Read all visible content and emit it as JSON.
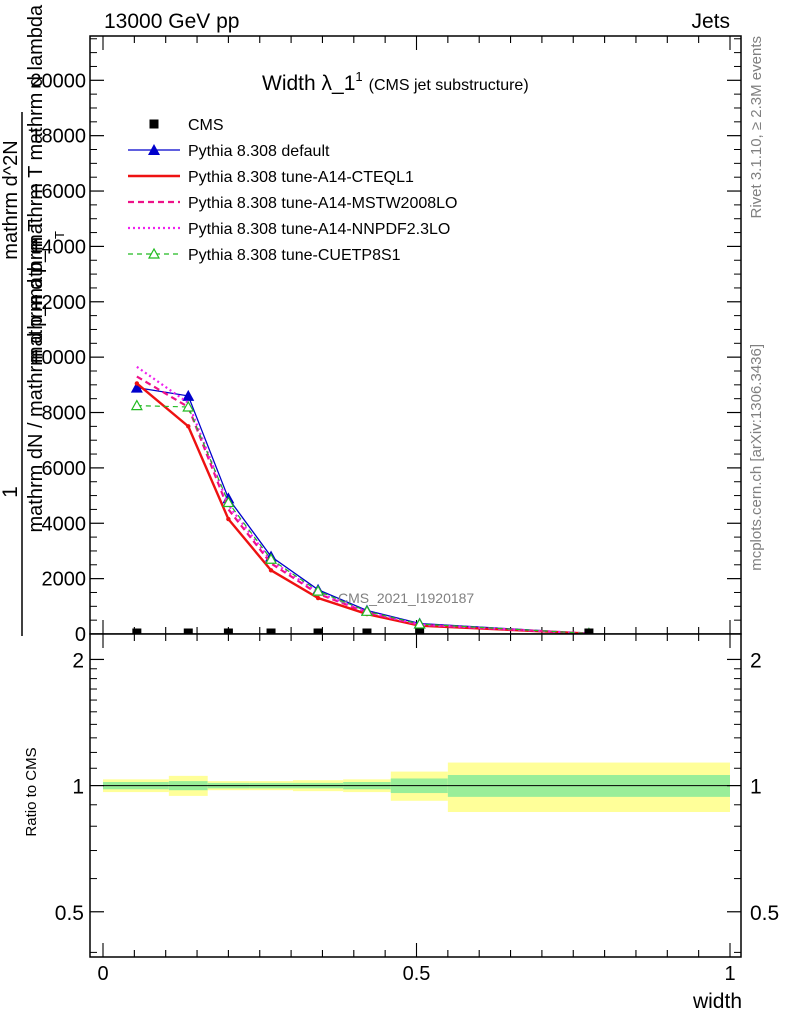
{
  "header": {
    "left": "13000 GeV pp",
    "right": "Jets"
  },
  "side_text": {
    "rivet": "Rivet 3.1.10, ≥ 2.3M events",
    "mcplots": "mcplots.cern.ch [arXiv:1306.3436]"
  },
  "chart_data": [
    {
      "panel": "main",
      "type": "line",
      "title_main": "Width λ_1",
      "title_sup": "1",
      "title_sub": "(CMS jet substructure)",
      "ylabel_left_numer": "1",
      "ylabel_left_denom": "mathrm dN / mathrm d p_mathrm T",
      "ylabel_right_numer": "mathrm d^2N",
      "ylabel_right_denom": "mathrm d p_mathrm T mathrm d lambda",
      "xlim": [
        -0.02,
        1.0
      ],
      "ylim": [
        0,
        21600
      ],
      "y_ticks": [
        0,
        2000,
        4000,
        6000,
        8000,
        10000,
        12000,
        14000,
        16000,
        18000,
        20000
      ],
      "y_tick_labels": [
        "0",
        "2000",
        "4000",
        "6000",
        "8000",
        "10000",
        "12000",
        "14000",
        "16000",
        "18000",
        "20000"
      ],
      "watermark": "CMS_2021_I1920187",
      "legend_position": "top-left",
      "x": [
        0.054,
        0.136,
        0.2,
        0.268,
        0.343,
        0.421,
        0.505,
        0.775
      ],
      "series": [
        {
          "name": "CMS",
          "style": "markers",
          "color": "#000000",
          "values": [
            0,
            0,
            0,
            0,
            0,
            0,
            0,
            0
          ]
        },
        {
          "name": "Pythia 8.308 default",
          "style": "solid-triangle",
          "color": "#0000cc",
          "values": [
            8900,
            8600,
            4900,
            2800,
            1600,
            850,
            380,
            20
          ]
        },
        {
          "name": "Pythia 8.308 tune-A14-CTEQL1",
          "style": "solid-thick",
          "color": "#ee1111",
          "values": [
            9050,
            7500,
            4150,
            2300,
            1300,
            720,
            300,
            15
          ]
        },
        {
          "name": "Pythia 8.308 tune-A14-MSTW2008LO",
          "style": "dashed",
          "color": "#ee1188",
          "values": [
            9300,
            8200,
            4500,
            2550,
            1450,
            780,
            330,
            18
          ]
        },
        {
          "name": "Pythia 8.308 tune-A14-NNPDF2.3LO",
          "style": "dotted",
          "color": "#ee22ee",
          "values": [
            9650,
            8350,
            4650,
            2650,
            1500,
            800,
            340,
            18
          ]
        },
        {
          "name": "Pythia 8.308 tune-CUETP8S1",
          "style": "dashed-open-triangle",
          "color": "#22bb22",
          "values": [
            8250,
            8200,
            4750,
            2700,
            1550,
            820,
            360,
            20
          ]
        }
      ]
    },
    {
      "panel": "ratio",
      "type": "area",
      "ylabel": "Ratio to CMS",
      "xlabel": "width",
      "xlim": [
        -0.02,
        1.0
      ],
      "x_ticks": [
        0,
        0.5,
        1
      ],
      "x_tick_labels": [
        "0",
        "0.5",
        "1"
      ],
      "y_scale": "log",
      "ylim": [
        0.39,
        2.3
      ],
      "y_ticks": [
        0.5,
        1,
        2
      ],
      "y_tick_labels": [
        "0.5",
        "1",
        "2"
      ],
      "bins": [
        {
          "lo": 0.0,
          "hi": 0.105,
          "stat": [
            0.98,
            1.02
          ],
          "total": [
            0.965,
            1.035
          ]
        },
        {
          "lo": 0.105,
          "hi": 0.167,
          "stat": [
            0.975,
            1.025
          ],
          "total": [
            0.945,
            1.055
          ]
        },
        {
          "lo": 0.167,
          "hi": 0.233,
          "stat": [
            0.985,
            1.015
          ],
          "total": [
            0.975,
            1.025
          ]
        },
        {
          "lo": 0.233,
          "hi": 0.303,
          "stat": [
            0.985,
            1.015
          ],
          "total": [
            0.975,
            1.025
          ]
        },
        {
          "lo": 0.303,
          "hi": 0.383,
          "stat": [
            0.985,
            1.015
          ],
          "total": [
            0.97,
            1.03
          ]
        },
        {
          "lo": 0.383,
          "hi": 0.459,
          "stat": [
            0.98,
            1.02
          ],
          "total": [
            0.965,
            1.035
          ]
        },
        {
          "lo": 0.459,
          "hi": 0.55,
          "stat": [
            0.96,
            1.04
          ],
          "total": [
            0.92,
            1.08
          ]
        },
        {
          "lo": 0.55,
          "hi": 1.0,
          "stat": [
            0.94,
            1.06
          ],
          "total": [
            0.865,
            1.135
          ]
        }
      ],
      "band_colors": {
        "stat": "#99ee99",
        "total": "#ffff99"
      }
    }
  ]
}
